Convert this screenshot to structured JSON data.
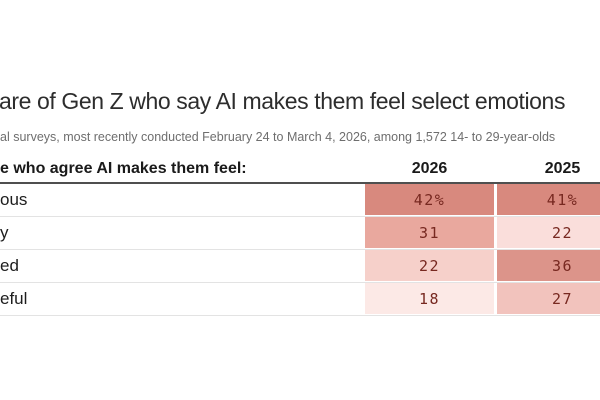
{
  "header": {
    "title": "are of Gen Z who say AI makes them feel select emotions",
    "subtitle": "al surveys, most recently conducted February 24 to March 4, 2026, among 1,572 14- to 29-year-olds"
  },
  "chart_data": {
    "type": "heatmap",
    "title": "are of Gen Z who say AI makes them feel select emotions",
    "subtitle": "al surveys, most recently conducted February 24 to March 4, 2026, among 1,572 14- to 29-year-olds",
    "row_header_label": "e who agree AI makes them feel:",
    "columns": [
      "2026",
      "2025"
    ],
    "rows": [
      {
        "label": "ous",
        "values": [
          42,
          41
        ],
        "display": [
          "42%",
          "41%"
        ],
        "colors": [
          "#d8897e",
          "#d8897e"
        ]
      },
      {
        "label": "y",
        "values": [
          31,
          22
        ],
        "display": [
          "31",
          "22"
        ],
        "colors": [
          "#e9a89e",
          "#fadedb"
        ]
      },
      {
        "label": "ed",
        "values": [
          22,
          36
        ],
        "display": [
          "22",
          "36"
        ],
        "colors": [
          "#f6d0ca",
          "#dc948a"
        ]
      },
      {
        "label": "eful",
        "values": [
          18,
          27
        ],
        "display": [
          "18",
          "27"
        ],
        "colors": [
          "#fce9e6",
          "#f2c3bd"
        ]
      }
    ],
    "value_text_color": "#772820",
    "header_rule_color": "#4f4f4f",
    "row_divider_color": "#e3e3e3",
    "legend_position": "none",
    "grid": false
  }
}
